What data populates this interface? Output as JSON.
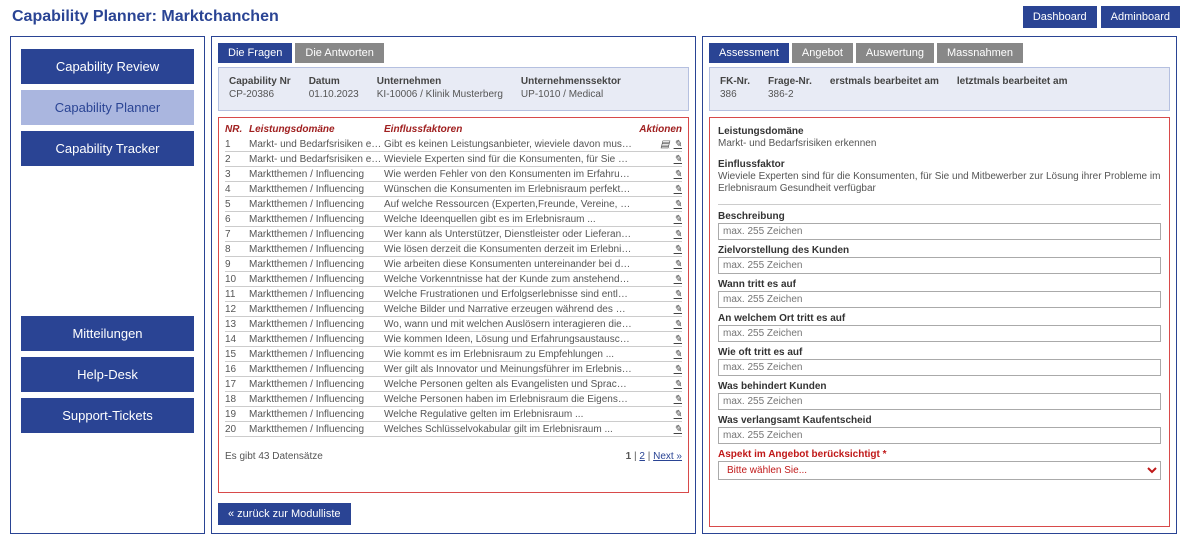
{
  "header": {
    "app_title": "Capability Planner: Marktchanchen",
    "dashboard_btn": "Dashboard",
    "adminboard_btn": "Adminboard"
  },
  "sidebar": {
    "top": [
      {
        "label": "Capability Review",
        "active": false
      },
      {
        "label": "Capability Planner",
        "active": true
      },
      {
        "label": "Capability Tracker",
        "active": false
      }
    ],
    "bottom": [
      {
        "label": "Mitteilungen"
      },
      {
        "label": "Help-Desk"
      },
      {
        "label": "Support-Tickets"
      }
    ]
  },
  "center": {
    "tabs": [
      {
        "label": "Die Fragen",
        "active": true
      },
      {
        "label": "Die Antworten",
        "active": false
      }
    ],
    "info": {
      "cap_nr_label": "Capability Nr",
      "cap_nr": "CP-20386",
      "datum_label": "Datum",
      "datum": "01.10.2023",
      "unternehmen_label": "Unternehmen",
      "unternehmen": "KI-10006 / Klinik Musterberg",
      "sektor_label": "Unternehmenssektor",
      "sektor": "UP-1010 / Medical"
    },
    "columns": {
      "nr": "NR.",
      "domain": "Leistungsdomäne",
      "factor": "Einflussfaktoren",
      "actions": "Aktionen"
    },
    "rows": [
      {
        "nr": "1",
        "domain": "Markt- und Bedarfsrisiken erkennen",
        "factor": "Gibt es keinen Leistungsanbieter, wieviele davon muss der pot ..."
      },
      {
        "nr": "2",
        "domain": "Markt- und Bedarfsrisiken erkennen",
        "factor": "Wieviele Experten sind für die Konsumenten, für Sie und Mi ..."
      },
      {
        "nr": "3",
        "domain": "Marktthemen / Influencing",
        "factor": "Wie werden Fehler von den Konsumenten im Erfahrungsraum (als ..."
      },
      {
        "nr": "4",
        "domain": "Marktthemen / Influencing",
        "factor": "Wünschen die Konsumenten im Erlebnisraum  perfekte Lösung ..."
      },
      {
        "nr": "5",
        "domain": "Marktthemen / Influencing",
        "factor": "Auf welche Ressourcen (Experten,Freunde, Vereine, analoge od ..."
      },
      {
        "nr": "6",
        "domain": "Marktthemen / Influencing",
        "factor": "Welche Ideenquellen gibt es im Erlebnisraum ..."
      },
      {
        "nr": "7",
        "domain": "Marktthemen / Influencing",
        "factor": "Wer kann als Unterstützer, Dienstleister oder Lieferant im ..."
      },
      {
        "nr": "8",
        "domain": "Marktthemen / Influencing",
        "factor": "Wie lösen derzeit die Konsumenten derzeit im Erlebnisraum G ..."
      },
      {
        "nr": "9",
        "domain": "Marktthemen / Influencing",
        "factor": "Wie arbeiten diese Konsumenten untereinander bei der Problem ..."
      },
      {
        "nr": "10",
        "domain": "Marktthemen / Influencing",
        "factor": "Welche Vorkenntnisse hat der Kunde zum anstehenden Konsumati ..."
      },
      {
        "nr": "11",
        "domain": "Marktthemen / Influencing",
        "factor": "Welche Frustrationen und Erfolgserlebnisse sind entlang dies ..."
      },
      {
        "nr": "12",
        "domain": "Marktthemen / Influencing",
        "factor": "Welche Bilder und Narrative erzeugen während des Customer J ..."
      },
      {
        "nr": "13",
        "domain": "Marktthemen / Influencing",
        "factor": "Wo, wann und mit welchen Auslösern interagieren die Konsume ..."
      },
      {
        "nr": "14",
        "domain": "Marktthemen / Influencing",
        "factor": "Wie kommen Ideen, Lösung und Erfahrungsaustausch im Erlebni ..."
      },
      {
        "nr": "15",
        "domain": "Marktthemen / Influencing",
        "factor": "Wie kommt es im Erlebnisraum zu Empfehlungen ..."
      },
      {
        "nr": "16",
        "domain": "Marktthemen / Influencing",
        "factor": "Wer gilt als Innovator und Meinungsführer im Erlebnisraum ..."
      },
      {
        "nr": "17",
        "domain": "Marktthemen / Influencing",
        "factor": "Welche Personen gelten als Evangelisten und Sprachrohre im E ..."
      },
      {
        "nr": "18",
        "domain": "Marktthemen / Influencing",
        "factor": "Welche Personen haben im Erlebnisraum die Eigenschaften ande ..."
      },
      {
        "nr": "19",
        "domain": "Marktthemen / Influencing",
        "factor": "Welche Regulative gelten im Erlebnisraum ..."
      },
      {
        "nr": "20",
        "domain": "Marktthemen / Influencing",
        "factor": "Welches Schlüsselvokabular gilt im Erlebnisraum ..."
      }
    ],
    "footer_count": "Es gibt 43 Datensätze",
    "pager": {
      "current": "1",
      "next_page": "2",
      "next_label": "Next »"
    },
    "back_btn": "«  zurück zur Modulliste"
  },
  "right": {
    "tabs": [
      {
        "label": "Assessment",
        "active": true
      },
      {
        "label": "Angebot",
        "active": false
      },
      {
        "label": "Auswertung",
        "active": false
      },
      {
        "label": "Massnahmen",
        "active": false
      }
    ],
    "info": {
      "fk_nr_label": "FK-Nr.",
      "fk_nr": "386",
      "frage_nr_label": "Frage-Nr.",
      "frage_nr": "386-2",
      "erstmals_label": "erstmals bearbeitet am",
      "letztmals_label": "letztmals bearbeitet am"
    },
    "detail": {
      "domain_label": "Leistungsdomäne",
      "domain_value": "Markt- und Bedarfsrisiken erkennen",
      "factor_label": "Einflussfaktor",
      "factor_value": "Wieviele Experten sind für die Konsumenten, für Sie und Mitbewerber zur Lösung ihrer Probleme im Erlebnisraum Gesundheit verfügbar"
    },
    "fields": [
      {
        "label": "Beschreibung",
        "placeholder": "max. 255 Zeichen"
      },
      {
        "label": "Zielvorstellung des Kunden",
        "placeholder": "max. 255 Zeichen"
      },
      {
        "label": "Wann tritt es auf",
        "placeholder": "max. 255 Zeichen"
      },
      {
        "label": "An welchem Ort tritt es auf",
        "placeholder": "max. 255 Zeichen"
      },
      {
        "label": "Wie oft tritt es auf",
        "placeholder": "max. 255 Zeichen"
      },
      {
        "label": "Was behindert Kunden",
        "placeholder": "max. 255 Zeichen"
      },
      {
        "label": "Was verlangsamt Kaufentscheid",
        "placeholder": "max. 255 Zeichen"
      }
    ],
    "select_field": {
      "label": "Aspekt im Angebot berücksichtigt *",
      "placeholder": "Bitte wählen Sie..."
    }
  }
}
